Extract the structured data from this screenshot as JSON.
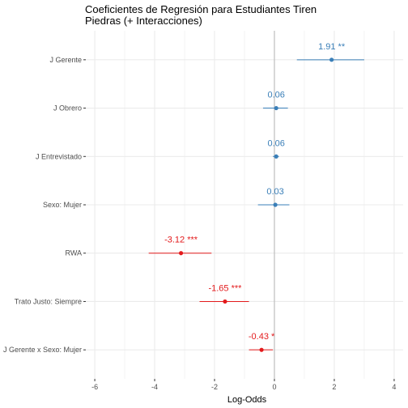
{
  "chart_data": {
    "type": "scatter",
    "subtype": "coefficient-plot",
    "title_lines": [
      "Coeficientes de Regresión para Estudiantes Tiren",
      "Piedras (+ Interacciones)"
    ],
    "xlabel": "Log-Odds",
    "ylabel": "",
    "xlim": [
      -6.3,
      4.3
    ],
    "x_ticks": [
      -6,
      -4,
      -2,
      0,
      2,
      4
    ],
    "x_tick_labels": [
      "-6",
      "-4",
      "-2",
      "0",
      "2",
      "4"
    ],
    "reference_line_x": 0,
    "grid": true,
    "legend": "none",
    "colors": {
      "positive": "#3a7fb8",
      "negative": "#e31a1c",
      "refline": "#b3b3b3",
      "grid": "#ebebeb",
      "tick": "#333333"
    },
    "terms": [
      {
        "name": "J Gerente",
        "estimate": 1.91,
        "ci_low": 0.75,
        "ci_high": 3.0,
        "label": "1.91 **"
      },
      {
        "name": "J Obrero",
        "estimate": 0.06,
        "ci_low": -0.38,
        "ci_high": 0.45,
        "label": "0.06"
      },
      {
        "name": "J Entrevistado",
        "estimate": 0.06,
        "ci_low": -0.05,
        "ci_high": 0.15,
        "label": "0.06"
      },
      {
        "name": "Sexo: Mujer",
        "estimate": 0.03,
        "ci_low": -0.55,
        "ci_high": 0.5,
        "label": "0.03"
      },
      {
        "name": "RWA",
        "estimate": -3.12,
        "ci_low": -4.2,
        "ci_high": -2.1,
        "label": "-3.12 ***"
      },
      {
        "name": "Trato Justo: Siempre",
        "estimate": -1.65,
        "ci_low": -2.5,
        "ci_high": -0.85,
        "label": "-1.65 ***"
      },
      {
        "name": "J Gerente x Sexo: Mujer",
        "estimate": -0.43,
        "ci_low": -0.85,
        "ci_high": -0.05,
        "label": "-0.43 *"
      }
    ]
  }
}
